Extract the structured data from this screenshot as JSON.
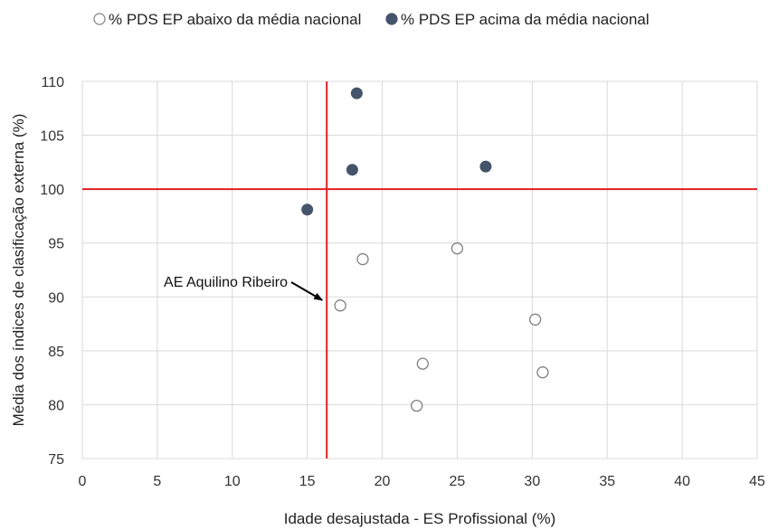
{
  "chart_data": {
    "type": "scatter",
    "xlabel": "Idade desajustada - ES Profissional (%)",
    "ylabel": "Média dos índices de clasificação externa (%)",
    "xlim": [
      0,
      45
    ],
    "ylim": [
      75,
      110
    ],
    "xticks": [
      0,
      5,
      10,
      15,
      20,
      25,
      30,
      35,
      40,
      45
    ],
    "yticks": [
      75,
      80,
      85,
      90,
      95,
      100,
      105,
      110
    ],
    "grid": true,
    "legend_position": "top",
    "reference_lines": {
      "x": 16.3,
      "y": 100,
      "color": "#e02020"
    },
    "series": [
      {
        "name": "% PDS EP abaixo da média nacional",
        "marker": "hollow-circle",
        "color": "#7f7f7f",
        "points": [
          {
            "x": 17.2,
            "y": 89.2
          },
          {
            "x": 18.7,
            "y": 93.5
          },
          {
            "x": 25.0,
            "y": 94.5
          },
          {
            "x": 22.7,
            "y": 83.8
          },
          {
            "x": 22.3,
            "y": 79.9
          },
          {
            "x": 30.2,
            "y": 87.9
          },
          {
            "x": 30.7,
            "y": 83.0
          }
        ]
      },
      {
        "name": "% PDS EP acima da média nacional",
        "marker": "filled-circle",
        "color": "#44546a",
        "points": [
          {
            "x": 18.3,
            "y": 108.9
          },
          {
            "x": 18.0,
            "y": 101.8
          },
          {
            "x": 26.9,
            "y": 102.1
          },
          {
            "x": 15.0,
            "y": 98.1
          }
        ]
      }
    ],
    "annotations": [
      {
        "text": "AE Aquilino Ribeiro",
        "target": {
          "x": 16.0,
          "y": 89.7
        }
      }
    ]
  }
}
